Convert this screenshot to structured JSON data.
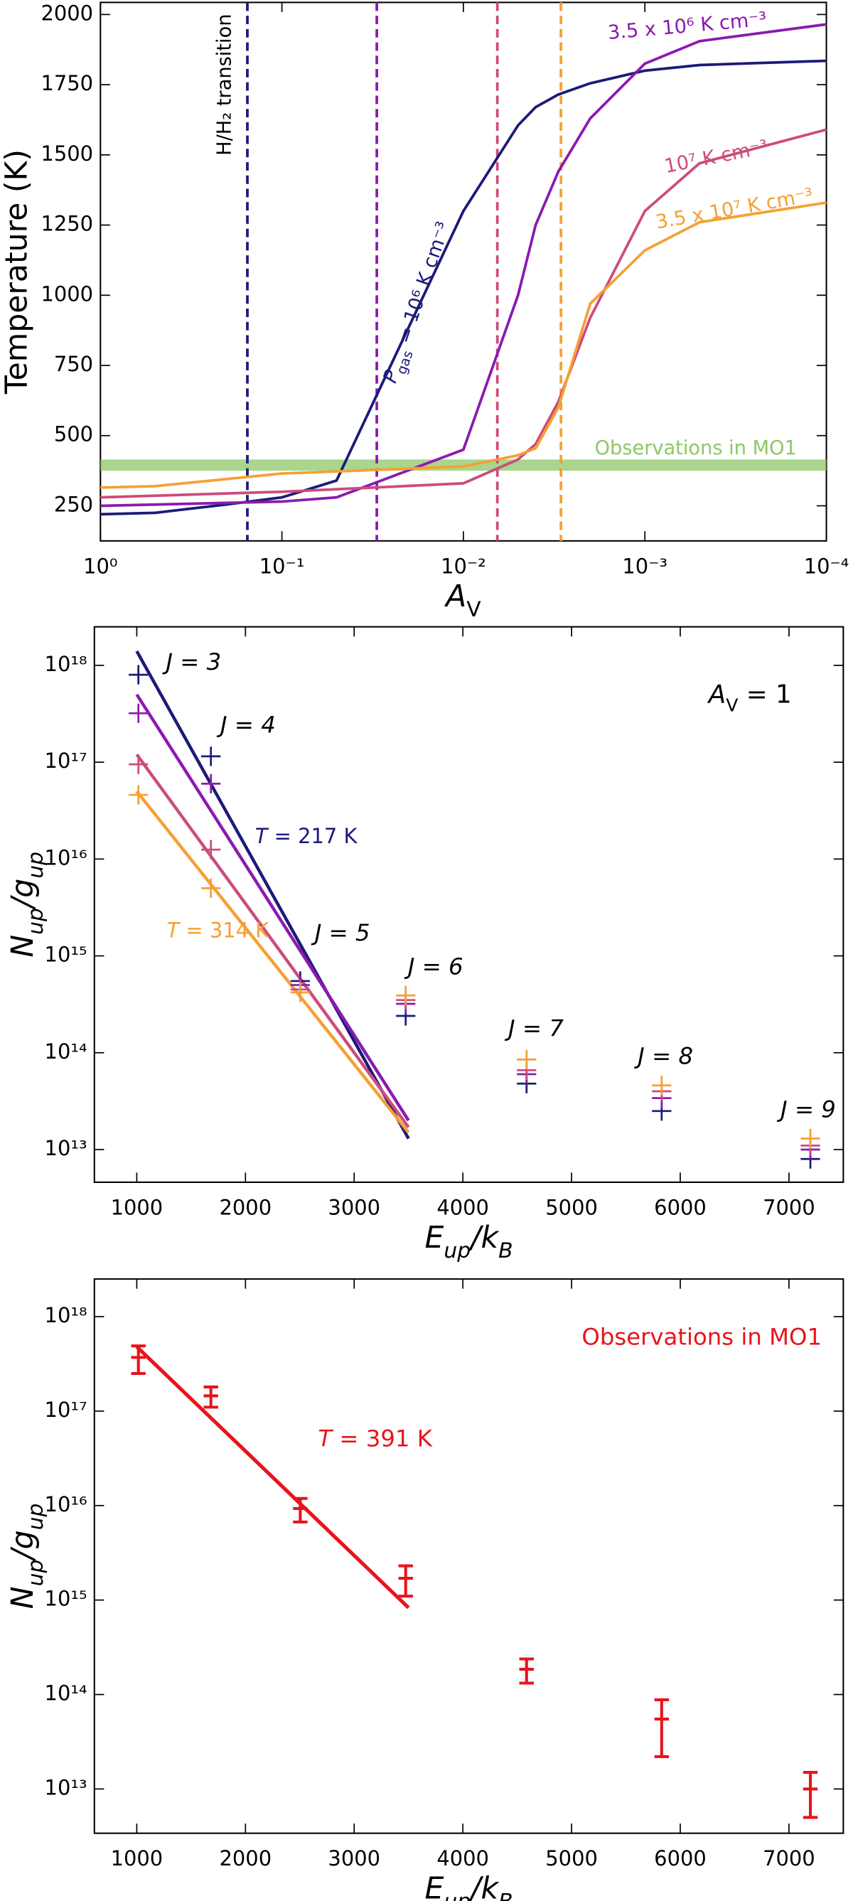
{
  "chart_data": [
    {
      "type": "line",
      "xlog": true,
      "ylog": false,
      "xlim": [
        1,
        0.0001
      ],
      "xticks": [
        {
          "value": 1,
          "label": "10⁰"
        },
        {
          "value": 0.1,
          "label": "10⁻¹"
        },
        {
          "value": 0.01,
          "label": "10⁻²"
        },
        {
          "value": 0.001,
          "label": "10⁻³"
        },
        {
          "value": 0.0001,
          "label": "10⁻⁴"
        }
      ],
      "ylim": [
        125,
        2043
      ],
      "yticks": [
        250,
        500,
        750,
        1000,
        1250,
        1500,
        1750,
        2000
      ],
      "x_label": [
        {
          "text": "A",
          "italic": true
        },
        {
          "text": "V",
          "shift": "sub"
        }
      ],
      "y_label": [
        {
          "text": "Temperature (K)"
        }
      ],
      "series": [
        {
          "color": "#1c1a78",
          "label": [
            {
              "text": "P",
              "italic": true
            },
            {
              "text": "gas",
              "shift": "sub"
            },
            {
              "text": " = 10⁶ K cm⁻³"
            }
          ],
          "x": [
            1,
            0.5,
            0.2,
            0.1,
            0.05,
            0.01,
            0.005,
            0.004,
            0.003,
            0.002,
            0.001,
            0.0005,
            0.0001
          ],
          "values": [
            220,
            225,
            255,
            280,
            340,
            1300,
            1605,
            1670,
            1715,
            1755,
            1800,
            1820,
            1835
          ]
        },
        {
          "color": "#8a1ab0",
          "label": [
            {
              "text": "3.5 x 10⁶ K cm⁻³"
            }
          ],
          "x": [
            1,
            0.1,
            0.05,
            0.01,
            0.005,
            0.004,
            0.003,
            0.002,
            0.001,
            0.0005,
            0.0001
          ],
          "values": [
            250,
            265,
            280,
            450,
            1000,
            1250,
            1440,
            1630,
            1825,
            1905,
            1965
          ]
        },
        {
          "color": "#cc4c7c",
          "label": [
            {
              "text": "10⁷ K cm⁻³"
            }
          ],
          "x": [
            1,
            0.1,
            0.01,
            0.005,
            0.004,
            0.003,
            0.002,
            0.001,
            0.0005,
            0.0001
          ],
          "values": [
            280,
            300,
            330,
            415,
            470,
            620,
            920,
            1300,
            1470,
            1590
          ]
        },
        {
          "color": "#f5a033",
          "label": [
            {
              "text": "3.5 x 10⁷ K cm⁻³"
            }
          ],
          "x": [
            1,
            0.5,
            0.1,
            0.01,
            0.005,
            0.004,
            0.003,
            0.002,
            0.001,
            0.0005,
            0.0001
          ],
          "values": [
            315,
            320,
            365,
            390,
            430,
            455,
            600,
            970,
            1160,
            1260,
            1330
          ]
        }
      ],
      "vlines": [
        {
          "x": 0.155,
          "color": "#1c1a78"
        },
        {
          "x": 0.03,
          "color": "#8a1ab0"
        },
        {
          "x": 0.0065,
          "color": "#cc4c7c"
        },
        {
          "x": 0.0029,
          "color": "#f5a033"
        }
      ],
      "vline_label": [
        {
          "text": "H/H₂ transition"
        }
      ],
      "band": {
        "range": [
          375,
          415
        ],
        "color": "#8cc866",
        "label": "Observations in MO1"
      }
    },
    {
      "type": "scatter",
      "xlog": false,
      "ylog": true,
      "xlim": [
        610,
        7500
      ],
      "xticks": [
        1000,
        2000,
        3000,
        4000,
        5000,
        6000,
        7000
      ],
      "ylim": [
        4600000000000.0,
        2.5e+18
      ],
      "yticks": [
        {
          "value": 10000000000000.0,
          "label": "10¹³"
        },
        {
          "value": 100000000000000.0,
          "label": "10¹⁴"
        },
        {
          "value": 1000000000000000.0,
          "label": "10¹⁵"
        },
        {
          "value": 1e+16,
          "label": "10¹⁶"
        },
        {
          "value": 1e+17,
          "label": "10¹⁷"
        },
        {
          "value": 1e+18,
          "label": "10¹⁸"
        }
      ],
      "x_label": [
        {
          "text": "E",
          "italic": true
        },
        {
          "text": "up",
          "shift": "sub",
          "italic": true
        },
        {
          "text": "/k",
          "italic": true
        },
        {
          "text": "B",
          "shift": "sub",
          "italic": true
        }
      ],
      "y_label": [
        {
          "text": "N",
          "italic": true
        },
        {
          "text": "up",
          "shift": "sub",
          "italic": true
        },
        {
          "text": "/g",
          "italic": true
        },
        {
          "text": "up",
          "shift": "sub",
          "italic": true
        }
      ],
      "x": [
        1015,
        1682,
        2504,
        3474,
        4586,
        5829,
        7197
      ],
      "series": [
        {
          "color": "#1c1a78",
          "values": [
            8e+17,
            1.15e+17,
            550000000000000.0,
            240000000000000.0,
            48000000000000.0,
            25000000000000.0,
            8000000000000.0
          ]
        },
        {
          "color": "#8a1ab0",
          "values": [
            3.2e+17,
            6e+16,
            500000000000000.0,
            320000000000000.0,
            60000000000000.0,
            34000000000000.0,
            10000000000000.0
          ]
        },
        {
          "color": "#cc4c7c",
          "values": [
            9.5e+16,
            1.25e+16,
            450000000000000.0,
            350000000000000.0,
            66000000000000.0,
            40000000000000.0,
            11000000000000.0
          ]
        },
        {
          "color": "#f5a033",
          "values": [
            4.6e+16,
            5000000000000000.0,
            420000000000000.0,
            390000000000000.0,
            85000000000000.0,
            46000000000000.0,
            13000000000000.0
          ]
        }
      ],
      "fits": [
        {
          "color": "#1c1a78",
          "x": [
            1000,
            3500
          ],
          "values": [
            1.4e+18,
            13000000000000.0
          ]
        },
        {
          "color": "#8a1ab0",
          "x": [
            1000,
            3500
          ],
          "values": [
            5e+17,
            20000000000000.0
          ]
        },
        {
          "color": "#cc4c7c",
          "x": [
            1000,
            3500
          ],
          "values": [
            1.2e+17,
            17000000000000.0
          ]
        },
        {
          "color": "#f5a033",
          "x": [
            1000,
            3500
          ],
          "values": [
            5e+16,
            15000000000000.0
          ]
        }
      ],
      "j_labels": [
        "J = 3",
        "J = 4",
        "J = 5",
        "J = 6",
        "J = 7",
        "J = 8",
        "J = 9"
      ],
      "fit_labels": [
        {
          "color": "#1c1a78",
          "text": [
            {
              "text": "T",
              "italic": true
            },
            {
              "text": " = 217 K"
            }
          ]
        },
        {
          "color": "#f5a033",
          "text": [
            {
              "text": "T",
              "italic": true
            },
            {
              "text": " = 314 K"
            }
          ]
        }
      ],
      "corner_label": [
        {
          "text": "A",
          "italic": true
        },
        {
          "text": "V",
          "shift": "sub"
        },
        {
          "text": " = 1"
        }
      ]
    },
    {
      "type": "errorbar",
      "xlog": false,
      "ylog": true,
      "xlim": [
        610,
        7500
      ],
      "xticks": [
        1000,
        2000,
        3000,
        4000,
        5000,
        6000,
        7000
      ],
      "ylim": [
        3400000000000.0,
        2.5e+18
      ],
      "yticks": [
        {
          "value": 10000000000000.0,
          "label": "10¹³"
        },
        {
          "value": 100000000000000.0,
          "label": "10¹⁴"
        },
        {
          "value": 1000000000000000.0,
          "label": "10¹⁵"
        },
        {
          "value": 1e+16,
          "label": "10¹⁶"
        },
        {
          "value": 1e+17,
          "label": "10¹⁷"
        },
        {
          "value": 1e+18,
          "label": "10¹⁸"
        }
      ],
      "x_label": [
        {
          "text": "E",
          "italic": true
        },
        {
          "text": "up",
          "shift": "sub",
          "italic": true
        },
        {
          "text": "/k",
          "italic": true
        },
        {
          "text": "B",
          "shift": "sub",
          "italic": true
        }
      ],
      "y_label": [
        {
          "text": "N",
          "italic": true
        },
        {
          "text": "up",
          "shift": "sub",
          "italic": true
        },
        {
          "text": "/g",
          "italic": true
        },
        {
          "text": "up",
          "shift": "sub",
          "italic": true
        }
      ],
      "color": "#e8141c",
      "x": [
        1015,
        1682,
        2504,
        3474,
        4586,
        5829,
        7197
      ],
      "values": [
        3.7e+17,
        1.45e+17,
        9300000000000000.0,
        1700000000000000.0,
        185000000000000.0,
        55000000000000.0,
        10000000000000.0
      ],
      "errors": [
        1.2e+17,
        3.5e+16,
        2600000000000000.0,
        600000000000000.0,
        53000000000000.0,
        33000000000000.0,
        5000000000000.0
      ],
      "fit": {
        "x": [
          1000,
          3500
        ],
        "values": [
          4.8e+17,
          830000000000000.0
        ]
      },
      "fit_label": [
        {
          "text": "T",
          "italic": true
        },
        {
          "text": " = 391 K"
        }
      ],
      "corner_label": [
        {
          "text": "Observations in MO1"
        }
      ]
    }
  ]
}
